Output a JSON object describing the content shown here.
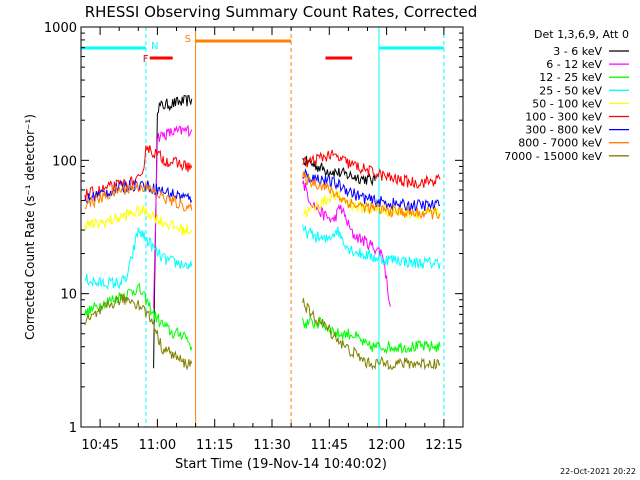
{
  "chart_data": {
    "type": "line",
    "title": "RHESSI Observing Summary Count Rates, Corrected",
    "xlabel": "Start Time (19-Nov-14 10:40:02)",
    "ylabel": "Corrected Count Rate (s⁻¹ detector⁻¹)",
    "ylog": true,
    "ylim": [
      1,
      1000
    ],
    "xlim": [
      "10:40",
      "12:20"
    ],
    "x_ticks": [
      "10:45",
      "11:00",
      "11:15",
      "11:30",
      "11:45",
      "12:00",
      "12:15"
    ],
    "y_ticks": [
      "1",
      "10",
      "100",
      "1000"
    ],
    "legend_title": "Det 1,3,6,9, Att 0",
    "legend_position": "right",
    "footer": "22-Oct-2021 20:22",
    "flags": [
      {
        "label": "N",
        "color": "#00ffff",
        "segments": [
          [
            "10:40",
            "10:57"
          ],
          [
            "11:58",
            "12:15"
          ]
        ]
      },
      {
        "label": "F",
        "color": "#ff0000",
        "segments": [
          [
            "10:58",
            "11:04"
          ],
          [
            "11:44",
            "11:51"
          ]
        ]
      },
      {
        "label": "S",
        "color": "#ff8000",
        "segments": [
          [
            "11:10",
            "11:35"
          ]
        ]
      }
    ],
    "vlines": [
      {
        "time": "10:57",
        "color": "#00ffff",
        "style": "dashed"
      },
      {
        "time": "11:10",
        "color": "#ff8000",
        "style": "solid"
      },
      {
        "time": "11:35",
        "color": "#ff8000",
        "style": "dashed"
      },
      {
        "time": "11:58",
        "color": "#00ffff",
        "style": "solid"
      },
      {
        "time": "12:15",
        "color": "#00ffff",
        "style": "dashed"
      }
    ],
    "series": [
      {
        "name": "3 - 6 keV",
        "color": "#000000",
        "segments": [
          {
            "t": [
              "10:59",
              "11:00",
              "11:02",
              "11:05",
              "11:08",
              "11:09"
            ],
            "v": [
              3,
              250,
              260,
              270,
              280,
              290
            ]
          },
          {
            "t": [
              "11:38",
              "11:40",
              "11:44",
              "11:48",
              "11:52",
              "11:55",
              "11:57"
            ],
            "v": [
              100,
              95,
              85,
              80,
              75,
              72,
              70
            ]
          }
        ]
      },
      {
        "name": "6 - 12 keV",
        "color": "#ff00ff",
        "segments": [
          {
            "t": [
              "10:59",
              "11:00",
              "11:03",
              "11:06",
              "11:09"
            ],
            "v": [
              8,
              150,
              160,
              165,
              170
            ]
          },
          {
            "t": [
              "11:38",
              "11:40",
              "11:43",
              "11:46",
              "11:48",
              "11:51",
              "11:54",
              "11:57",
              "11:59",
              "12:01"
            ],
            "v": [
              70,
              50,
              40,
              35,
              45,
              28,
              25,
              22,
              20,
              8
            ]
          }
        ]
      },
      {
        "name": "12 - 25 keV",
        "color": "#00ff00",
        "segments": [
          {
            "t": [
              "10:41",
              "10:44",
              "10:48",
              "10:52",
              "10:55",
              "10:57",
              "10:59",
              "11:01",
              "11:04",
              "11:07",
              "11:09"
            ],
            "v": [
              7,
              8,
              9,
              10,
              11,
              9,
              7,
              6,
              5,
              5,
              4
            ]
          },
          {
            "t": [
              "11:38",
              "11:40",
              "11:43",
              "11:47",
              "11:51",
              "11:55",
              "11:58",
              "12:02",
              "12:06",
              "12:10",
              "12:14"
            ],
            "v": [
              6,
              6,
              6,
              5,
              5,
              4,
              4,
              4,
              4,
              4,
              4
            ]
          }
        ]
      },
      {
        "name": "25 - 50 keV",
        "color": "#00ffff",
        "segments": [
          {
            "t": [
              "10:41",
              "10:44",
              "10:47",
              "10:50",
              "10:52",
              "10:55",
              "10:58",
              "11:00",
              "11:02",
              "11:05",
              "11:09"
            ],
            "v": [
              13,
              12,
              12,
              12,
              13,
              30,
              24,
              20,
              18,
              17,
              16
            ]
          },
          {
            "t": [
              "11:38",
              "11:40",
              "11:44",
              "11:47",
              "11:50",
              "11:53",
              "11:56",
              "11:59",
              "12:03",
              "12:07",
              "12:11",
              "12:14"
            ],
            "v": [
              30,
              28,
              25,
              30,
              22,
              20,
              19,
              18,
              18,
              17,
              17,
              17
            ]
          }
        ]
      },
      {
        "name": "50 - 100 keV",
        "color": "#ffff00",
        "segments": [
          {
            "t": [
              "10:41",
              "10:44",
              "10:47",
              "10:50",
              "10:53",
              "10:56",
              "10:58",
              "11:01",
              "11:04",
              "11:07",
              "11:09"
            ],
            "v": [
              33,
              33,
              35,
              37,
              40,
              42,
              40,
              35,
              32,
              30,
              30
            ]
          },
          {
            "t": [
              "11:38",
              "11:40",
              "11:43",
              "11:46",
              "11:49",
              "11:52",
              "11:56",
              "12:00",
              "12:04",
              "12:08",
              "12:12",
              "12:14"
            ],
            "v": [
              40,
              42,
              48,
              55,
              50,
              45,
              43,
              42,
              41,
              40,
              40,
              40
            ]
          }
        ]
      },
      {
        "name": "100 - 300 keV",
        "color": "#ff0000",
        "segments": [
          {
            "t": [
              "10:41",
              "10:44",
              "10:47",
              "10:50",
              "10:53",
              "10:56",
              "10:57",
              "10:58",
              "11:00",
              "11:02",
              "11:05",
              "11:08",
              "11:09"
            ],
            "v": [
              55,
              58,
              62,
              65,
              68,
              72,
              130,
              120,
              110,
              100,
              95,
              90,
              88
            ]
          },
          {
            "t": [
              "11:38",
              "11:40",
              "11:43",
              "11:45",
              "11:47",
              "11:50",
              "11:53",
              "11:56",
              "12:00",
              "12:04",
              "12:08",
              "12:12",
              "12:14"
            ],
            "v": [
              95,
              98,
              105,
              110,
              105,
              95,
              88,
              82,
              75,
              70,
              68,
              70,
              72
            ]
          }
        ]
      },
      {
        "name": "300 - 800 keV",
        "color": "#0000ff",
        "segments": [
          {
            "t": [
              "10:41",
              "10:44",
              "10:47",
              "10:50",
              "10:53",
              "10:56",
              "10:59",
              "11:02",
              "11:05",
              "11:08",
              "11:09"
            ],
            "v": [
              50,
              55,
              58,
              62,
              65,
              66,
              62,
              58,
              55,
              52,
              50
            ]
          },
          {
            "t": [
              "11:38",
              "11:40",
              "11:43",
              "11:46",
              "11:49",
              "11:52",
              "11:56",
              "12:00",
              "12:04",
              "12:08",
              "12:12",
              "12:14"
            ],
            "v": [
              80,
              75,
              72,
              68,
              62,
              55,
              50,
              48,
              46,
              46,
              46,
              46
            ]
          }
        ]
      },
      {
        "name": "800 - 7000 keV",
        "color": "#ff8000",
        "segments": [
          {
            "t": [
              "10:41",
              "10:44",
              "10:47",
              "10:50",
              "10:53",
              "10:56",
              "10:59",
              "11:02",
              "11:05",
              "11:08",
              "11:09"
            ],
            "v": [
              48,
              50,
              55,
              60,
              62,
              64,
              58,
              52,
              48,
              45,
              42
            ]
          },
          {
            "t": [
              "11:38",
              "11:40",
              "11:43",
              "11:46",
              "11:49",
              "11:52",
              "11:56",
              "12:00",
              "12:04",
              "12:08",
              "12:12",
              "12:14"
            ],
            "v": [
              75,
              70,
              65,
              58,
              50,
              46,
              44,
              42,
              41,
              40,
              40,
              40
            ]
          }
        ]
      },
      {
        "name": "7000 - 15000 keV",
        "color": "#808000",
        "segments": [
          {
            "t": [
              "10:41",
              "10:44",
              "10:47",
              "10:50",
              "10:53",
              "10:56",
              "10:59",
              "11:01",
              "11:04",
              "11:07",
              "11:09"
            ],
            "v": [
              6,
              7,
              8,
              9,
              9,
              8,
              6,
              4,
              3.5,
              3,
              3
            ]
          },
          {
            "t": [
              "11:38",
              "11:40",
              "11:43",
              "11:46",
              "11:49",
              "11:52",
              "11:55",
              "11:58",
              "12:02",
              "12:06",
              "12:10",
              "12:14"
            ],
            "v": [
              9,
              7,
              6,
              5,
              4,
              3.5,
              3,
              3,
              3,
              3,
              3,
              3
            ]
          }
        ]
      }
    ]
  }
}
